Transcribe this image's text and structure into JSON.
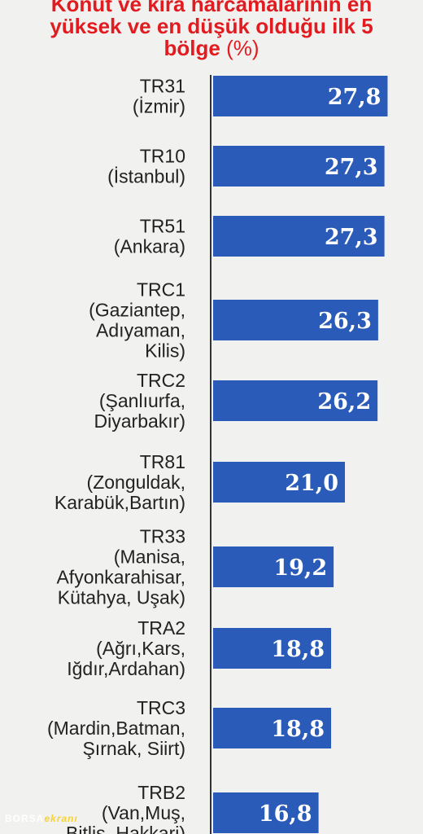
{
  "title": {
    "line1": "Konut ve kira harcamalarının en",
    "line2": "yüksek ve en düşük olduğu ilk 5",
    "line3": "bölge",
    "unit": "(%)"
  },
  "chart_data": {
    "type": "bar",
    "orientation": "horizontal",
    "bar_color": "#2a5bb8",
    "categories": [
      [
        "TR31",
        "(İzmir)"
      ],
      [
        "TR10",
        "(İstanbul)"
      ],
      [
        "TR51",
        "(Ankara)"
      ],
      [
        "TRC1",
        "(Gaziantep,",
        "Adıyaman,",
        "Kilis)"
      ],
      [
        "TRC2",
        "(Şanlıurfa,",
        "Diyarbakır)"
      ],
      [
        "TR81",
        "(Zonguldak,",
        "Karabük,Bartın)"
      ],
      [
        "TR33",
        "(Manisa,",
        "Afyonkarahisar,",
        "Kütahya, Uşak)"
      ],
      [
        "TRA2",
        "(Ağrı,Kars,",
        "Iğdır,Ardahan)"
      ],
      [
        "TRC3",
        "(Mardin,Batman,",
        "Şırnak, Siirt)"
      ],
      [
        "TRB2",
        "(Van,Muş,",
        "Bitlis, Hakkari)"
      ]
    ],
    "values": [
      27.8,
      27.3,
      27.3,
      26.3,
      26.2,
      21.0,
      19.2,
      18.8,
      18.8,
      16.8
    ],
    "value_labels": [
      "27,8",
      "27,3",
      "27,3",
      "26,3",
      "26,2",
      "21,0",
      "19,2",
      "18,8",
      "18,8",
      "16,8"
    ],
    "xlim": [
      0,
      28
    ]
  },
  "watermark": {
    "part1": "BORSA",
    "part2": "ekranı"
  }
}
